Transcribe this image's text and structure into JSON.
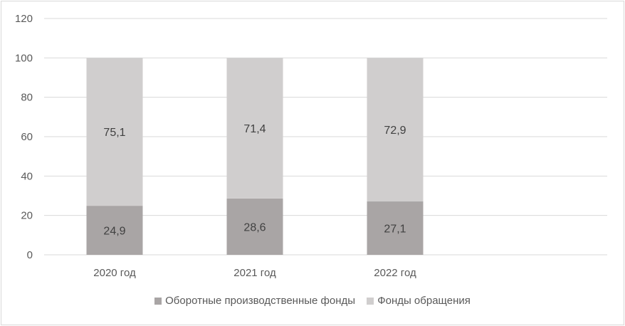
{
  "chart_data": {
    "type": "bar",
    "stacked": true,
    "categories": [
      "2020 год",
      "2021 год",
      "2022 год"
    ],
    "series": [
      {
        "name": "Оборотные производственные фонды",
        "values": [
          24.9,
          28.6,
          27.1
        ],
        "labels": [
          "24,9",
          "28,6",
          "27,1"
        ],
        "color": "#a9a5a5"
      },
      {
        "name": "Фонды обращения",
        "values": [
          75.1,
          71.4,
          72.9
        ],
        "labels": [
          "75,1",
          "71,4",
          "72,9"
        ],
        "color": "#d0cece"
      }
    ],
    "ylim": [
      0,
      120
    ],
    "yticks": [
      "0",
      "20",
      "40",
      "60",
      "80",
      "100",
      "120"
    ],
    "grid": true,
    "legend": "bottom",
    "gridline_color": "#d9d9d9"
  }
}
